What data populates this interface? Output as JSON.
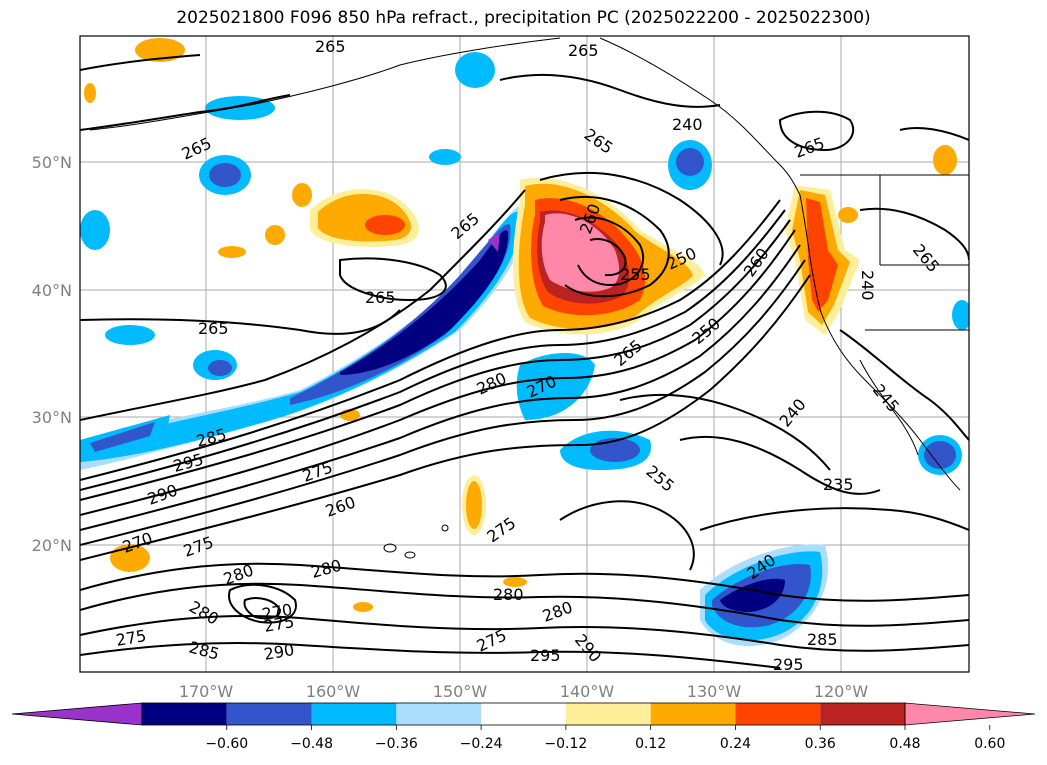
{
  "title": "2025021800 F096 850 hPa refract., precipitation PC (2025022200 - 2025022300)",
  "lat_labels": [
    "50°N",
    "40°N",
    "30°N",
    "20°N"
  ],
  "lon_labels": [
    "170°W",
    "160°W",
    "150°W",
    "140°W",
    "130°W",
    "120°W"
  ],
  "contour_labels": [
    "265",
    "265",
    "265",
    "265",
    "265",
    "265",
    "265",
    "260",
    "255",
    "250",
    "250",
    "265",
    "260",
    "240",
    "265",
    "265",
    "280",
    "270",
    "285",
    "295",
    "275",
    "290",
    "260",
    "275",
    "270",
    "280",
    "280",
    "275",
    "280",
    "270",
    "275",
    "275",
    "285",
    "290",
    "280",
    "280",
    "275",
    "290",
    "295",
    "255",
    "240",
    "235",
    "245",
    "240",
    "285",
    "295",
    "240"
  ],
  "colorbar": {
    "colors": [
      "#9933cc",
      "#000080",
      "#3355cc",
      "#00bbff",
      "#aaddff",
      "#ffffff",
      "#ffee99",
      "#ffaa00",
      "#ff4400",
      "#bb2222",
      "#ff88aa"
    ],
    "tick_labels": [
      "−0.60",
      "−0.48",
      "−0.36",
      "−0.24",
      "−0.12",
      "0.12",
      "0.24",
      "0.36",
      "0.48",
      "0.60"
    ],
    "extend": "both"
  },
  "colors": {
    "frame": "#000000",
    "grid": "#aaaaaa",
    "contour": "#000000",
    "axis_text": "#808080"
  }
}
